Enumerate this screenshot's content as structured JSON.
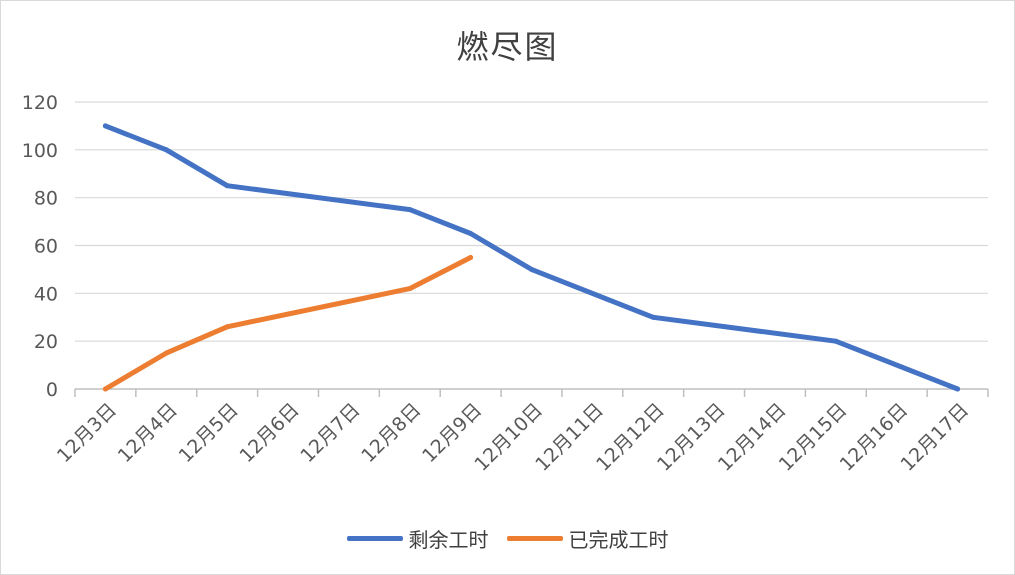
{
  "chart_data": {
    "type": "line",
    "title": "燃尽图",
    "xlabel": "",
    "ylabel": "",
    "ylim": [
      0,
      120
    ],
    "yticks": [
      "0",
      "20",
      "40",
      "60",
      "80",
      "100",
      "120"
    ],
    "grid": true,
    "legend_position": "bottom",
    "categories": [
      "12月3日",
      "12月4日",
      "12月5日",
      "12月6日",
      "12月7日",
      "12月8日",
      "12月9日",
      "12月10日",
      "12月11日",
      "12月12日",
      "12月13日",
      "12月14日",
      "12月15日",
      "12月16日",
      "12月17日"
    ],
    "series": [
      {
        "name": "剩余工时",
        "color": "#4472C4",
        "values": [
          110,
          100,
          85,
          null,
          null,
          75,
          65,
          50,
          null,
          30,
          null,
          null,
          20,
          null,
          0
        ]
      },
      {
        "name": "已完成工时",
        "color": "#ED7D31",
        "values": [
          0,
          15,
          26,
          null,
          null,
          42,
          55,
          null,
          null,
          null,
          null,
          null,
          null,
          null,
          null
        ]
      }
    ]
  }
}
